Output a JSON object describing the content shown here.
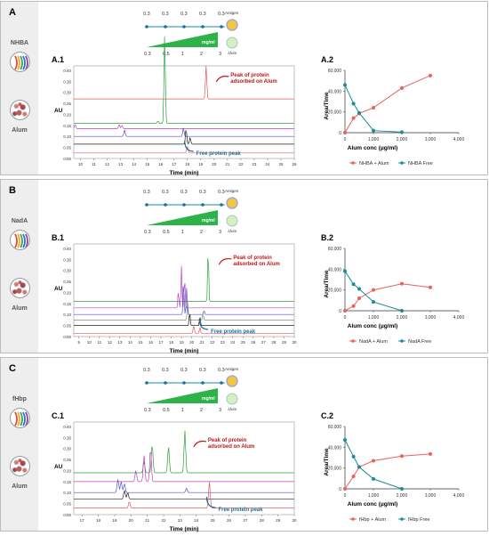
{
  "panels": [
    {
      "label": "A",
      "protein": "NHBA",
      "alum": "Alum",
      "scheme": {
        "antigen_label": "Antigen",
        "alum_label": "Alum",
        "unit": "mg/ml",
        "top": [
          "0.3",
          "0.3",
          "0.3",
          "0.3",
          "0.3"
        ],
        "bottom": [
          "0.3",
          "0.5",
          "1",
          "2",
          "3"
        ]
      },
      "chrom": {
        "label": "A.1",
        "xlabel": "Time (min)",
        "ylabel": "AU",
        "xticks": [
          "10",
          "11",
          "12",
          "13",
          "14",
          "15",
          "16",
          "17",
          "18",
          "19",
          "20",
          "21",
          "22",
          "23",
          "24",
          "25",
          "26"
        ],
        "yticks": [
          "0.00",
          "0.05",
          "0.10",
          "0.15",
          "0.20",
          "0.25",
          "0.30",
          "0.35",
          "0.40"
        ],
        "peak_note": [
          "Peak of protein",
          "adsorbed on Alum"
        ],
        "free_note": "Free protein peak"
      },
      "chart_data": {
        "label": "A.2",
        "type": "line",
        "title": "",
        "xlabel": "Alum conc (µg/ml)",
        "ylabel": "Area/Time",
        "xlim": [
          0,
          4000
        ],
        "ylim": [
          0,
          60000
        ],
        "xticks": [
          "0",
          "1,000",
          "2,000",
          "3,000",
          "4,000"
        ],
        "yticks": [
          "0",
          "20,000",
          "40,000",
          "60,000"
        ],
        "series": [
          {
            "name": "NHBA + Alum",
            "color": "#e8615d",
            "x": [
              0,
              300,
              500,
              1000,
              2000,
              3000
            ],
            "y": [
              0,
              14000,
              18500,
              24000,
              43000,
              55000
            ]
          },
          {
            "name": "NHBA Free",
            "color": "#1a8c96",
            "x": [
              0,
              300,
              500,
              1000,
              2000
            ],
            "y": [
              46000,
              28000,
              19000,
              2000,
              500
            ]
          }
        ]
      }
    },
    {
      "label": "B",
      "protein": "NadA",
      "alum": "Alum",
      "scheme": {
        "antigen_label": "Antigen",
        "alum_label": "Alum",
        "unit": "mg/ml",
        "top": [
          "0.3",
          "0.3",
          "0.3",
          "0.3",
          "0.3"
        ],
        "bottom": [
          "0.3",
          "0.5",
          "1",
          "2",
          "3"
        ]
      },
      "chrom": {
        "label": "B.1",
        "xlabel": "Time (min)",
        "ylabel": "AU",
        "xticks": [
          "9",
          "10",
          "11",
          "12",
          "13",
          "14",
          "15",
          "16",
          "17",
          "18",
          "19",
          "20",
          "21",
          "22",
          "23",
          "24",
          "25",
          "26",
          "27",
          "28",
          "29",
          "30"
        ],
        "yticks": [
          "0.00",
          "0.05",
          "0.10",
          "0.15",
          "0.20",
          "0.25",
          "0.30",
          "0.35",
          "0.40"
        ],
        "peak_note": [
          "Peak of protein",
          "adsorbed on Alum"
        ],
        "free_note": "Free protein peak"
      },
      "chart_data": {
        "label": "B.2",
        "type": "line",
        "title": "",
        "xlabel": "Alum conc (µg/ml)",
        "ylabel": "Area/Time",
        "xlim": [
          0,
          4000
        ],
        "ylim": [
          0,
          60000
        ],
        "xticks": [
          "0",
          "1,000",
          "2,000",
          "3,000",
          "4,000"
        ],
        "yticks": [
          "0",
          "20,000",
          "40,000",
          "60,000"
        ],
        "series": [
          {
            "name": "NadA + Alum",
            "color": "#e8615d",
            "x": [
              0,
              300,
              500,
              1000,
              2000,
              3000
            ],
            "y": [
              0,
              4500,
              12000,
              20000,
              26000,
              22500
            ]
          },
          {
            "name": "NadA Free",
            "color": "#1a8c96",
            "x": [
              0,
              300,
              500,
              1000,
              2000
            ],
            "y": [
              38000,
              25500,
              21000,
              8500,
              0
            ]
          }
        ]
      }
    },
    {
      "label": "C",
      "protein": "fHbp",
      "alum": "Alum",
      "scheme": {
        "antigen_label": "Antigen",
        "alum_label": "Alum",
        "unit": "mg/ml",
        "top": [
          "0.3",
          "0.3",
          "0.3",
          "0.3",
          "0.3"
        ],
        "bottom": [
          "0.3",
          "0.5",
          "1",
          "2",
          "3"
        ]
      },
      "chrom": {
        "label": "C.1",
        "xlabel": "Time (min)",
        "ylabel": "AU",
        "xticks": [
          "17",
          "18",
          "19",
          "20",
          "21",
          "22",
          "23",
          "24",
          "25",
          "26",
          "27",
          "28",
          "29",
          "30"
        ],
        "yticks": [
          "0.00",
          "0.05",
          "0.10",
          "0.15",
          "0.20",
          "0.25",
          "0.30",
          "0.35",
          "0.40"
        ],
        "peak_note": [
          "Peak of protein",
          "adsorbed on Alum"
        ],
        "free_note": "Free protein peak"
      },
      "chart_data": {
        "label": "C.2",
        "type": "line",
        "title": "",
        "xlabel": "Alum conc (µg/ml)",
        "ylabel": "Area/Time",
        "xlim": [
          0,
          4000
        ],
        "ylim": [
          0,
          60000
        ],
        "xticks": [
          "0",
          "1,000",
          "2,000",
          "3,000",
          "4,000"
        ],
        "yticks": [
          "0",
          "20,000",
          "40,000",
          "60,000"
        ],
        "series": [
          {
            "name": "fHbp + Alum",
            "color": "#e8615d",
            "x": [
              0,
              300,
              500,
              1000,
              2000,
              3000
            ],
            "y": [
              0,
              12000,
              21000,
              27000,
              31500,
              33500
            ]
          },
          {
            "name": "fHbp  Free",
            "color": "#1a8c96",
            "x": [
              0,
              300,
              500,
              1000,
              2000
            ],
            "y": [
              47000,
              31000,
              21000,
              9500,
              0
            ]
          }
        ]
      }
    }
  ]
}
